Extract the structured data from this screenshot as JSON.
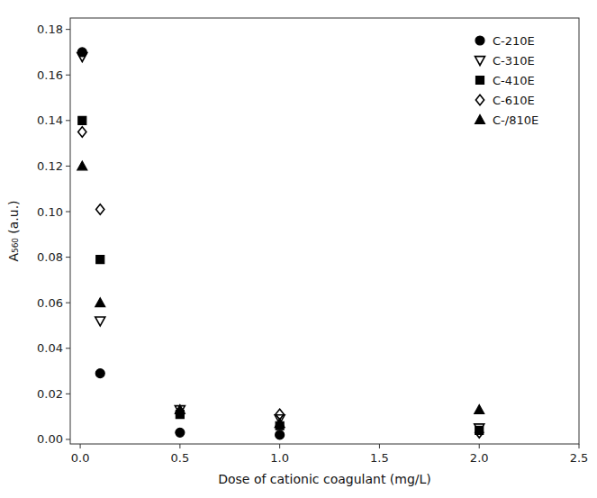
{
  "chart_data": {
    "type": "scatter",
    "xlabel": "Dose of cationic coagulant (mg/L)",
    "ylabel": "A₅₆₀ (a.u.)",
    "xlim": [
      -0.05,
      2.5
    ],
    "ylim": [
      -0.002,
      0.185
    ],
    "xticks": [
      {
        "value": 0.0,
        "label": "0.0"
      },
      0.5,
      {
        "value": 1.0,
        "label": "1.0"
      },
      1.5,
      {
        "value": 2.0,
        "label": "2.0"
      },
      2.5
    ],
    "yticks": [
      {
        "value": 0.0,
        "label": "0.00"
      },
      0.02,
      0.04,
      0.06,
      0.08,
      {
        "value": 0.1,
        "label": "0.10"
      },
      0.12,
      0.14,
      0.16,
      0.18
    ],
    "grid": false,
    "legend": "top-right",
    "series": [
      {
        "name": "C-210E",
        "marker": "circle",
        "color": "black",
        "x": [
          0.01,
          0.1,
          0.5,
          1.0
        ],
        "values": [
          0.17,
          0.029,
          0.003,
          0.002
        ]
      },
      {
        "name": "C-310E",
        "marker": "triangle-down-open",
        "color": "black",
        "x": [
          0.01,
          0.1,
          0.5,
          1.0,
          2.0
        ],
        "values": [
          0.168,
          0.052,
          0.013,
          0.009,
          0.005
        ]
      },
      {
        "name": "C-410E",
        "marker": "square",
        "color": "black",
        "x": [
          0.01,
          0.1,
          0.5,
          1.0,
          2.0
        ],
        "values": [
          0.14,
          0.079,
          0.011,
          0.006,
          0.004
        ]
      },
      {
        "name": "C-610E",
        "marker": "diamond-open",
        "color": "black",
        "x": [
          0.01,
          0.1,
          0.5,
          1.0,
          2.0
        ],
        "values": [
          0.135,
          0.101,
          0.012,
          0.011,
          0.003
        ]
      },
      {
        "name": "C-/810E",
        "marker": "triangle-up",
        "color": "black",
        "x": [
          0.01,
          0.1,
          0.5,
          1.0,
          2.0
        ],
        "values": [
          0.12,
          0.06,
          0.013,
          0.007,
          0.013
        ]
      }
    ]
  }
}
